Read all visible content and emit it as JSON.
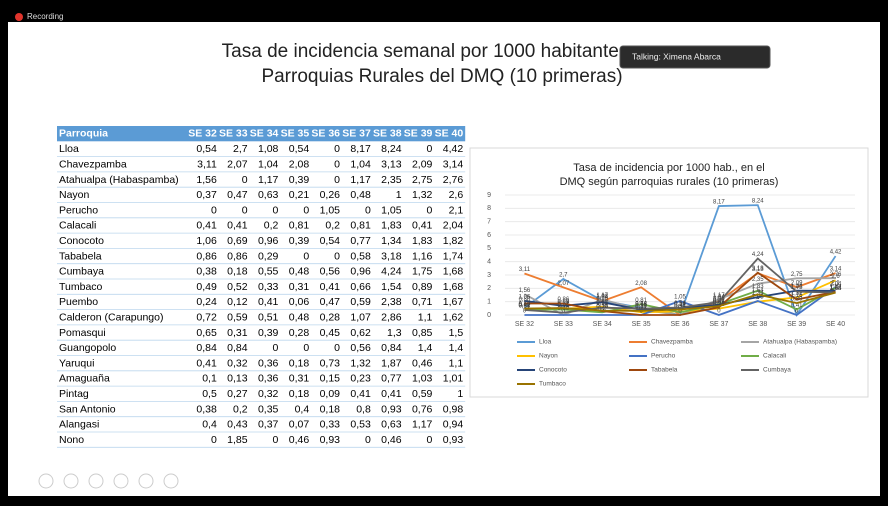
{
  "recording": {
    "label": "Recording"
  },
  "talking": {
    "label": "Talking: Ximena Abarca"
  },
  "slide": {
    "title_line1": "Tasa de incidencia semanal por 1000 habitantes",
    "title_line2": "Parroquias Rurales del DMQ (10 primeras)"
  },
  "table": {
    "header": [
      "Parroquia",
      "SE 32",
      "SE 33",
      "SE 34",
      "SE 35",
      "SE 36",
      "SE 37",
      "SE 38",
      "SE 39",
      "SE 40"
    ],
    "rows": [
      [
        "Lloa",
        "0,54",
        "2,7",
        "1,08",
        "0,54",
        "0",
        "8,17",
        "8,24",
        "0",
        "4,42"
      ],
      [
        "Chavezpamba",
        "3,11",
        "2,07",
        "1,04",
        "2,08",
        "0",
        "1,04",
        "3,13",
        "2,09",
        "3,14"
      ],
      [
        "Atahualpa (Habaspamba)",
        "1,56",
        "0",
        "1,17",
        "0,39",
        "0",
        "1,17",
        "2,35",
        "2,75",
        "2,76"
      ],
      [
        "Nayon",
        "0,37",
        "0,47",
        "0,63",
        "0,21",
        "0,26",
        "0,48",
        "1",
        "1,32",
        "2,6"
      ],
      [
        "Perucho",
        "0",
        "0",
        "0",
        "0",
        "1,05",
        "0",
        "1,05",
        "0",
        "2,1"
      ],
      [
        "Calacali",
        "0,41",
        "0,41",
        "0,2",
        "0,81",
        "0,2",
        "0,81",
        "1,83",
        "0,41",
        "2,04"
      ],
      [
        "Conocoto",
        "1,06",
        "0,69",
        "0,96",
        "0,39",
        "0,54",
        "0,77",
        "1,34",
        "1,83",
        "1,82"
      ],
      [
        "Tababela",
        "0,86",
        "0,86",
        "0,29",
        "0",
        "0",
        "0,58",
        "3,18",
        "1,16",
        "1,74"
      ],
      [
        "Cumbaya",
        "0,38",
        "0,18",
        "0,55",
        "0,48",
        "0,56",
        "0,96",
        "4,24",
        "1,75",
        "1,68"
      ],
      [
        "Tumbaco",
        "0,49",
        "0,52",
        "0,33",
        "0,31",
        "0,41",
        "0,66",
        "1,54",
        "0,89",
        "1,68"
      ],
      [
        "Puembo",
        "0,24",
        "0,12",
        "0,41",
        "0,06",
        "0,47",
        "0,59",
        "2,38",
        "0,71",
        "1,67"
      ],
      [
        "Calderon (Carapungo)",
        "0,72",
        "0,59",
        "0,51",
        "0,48",
        "0,28",
        "1,07",
        "2,86",
        "1,1",
        "1,62"
      ],
      [
        "Pomasqui",
        "0,65",
        "0,31",
        "0,39",
        "0,28",
        "0,45",
        "0,62",
        "1,3",
        "0,85",
        "1,5"
      ],
      [
        "Guangopolo",
        "0,84",
        "0,84",
        "0",
        "0",
        "0",
        "0,56",
        "0,84",
        "1,4",
        "1,4"
      ],
      [
        "Yaruqui",
        "0,41",
        "0,32",
        "0,36",
        "0,18",
        "0,73",
        "1,32",
        "1,87",
        "0,46",
        "1,1"
      ],
      [
        "Amaguaña",
        "0,1",
        "0,13",
        "0,36",
        "0,31",
        "0,15",
        "0,23",
        "0,77",
        "1,03",
        "1,01"
      ],
      [
        "Pintag",
        "0,5",
        "0,27",
        "0,32",
        "0,18",
        "0,09",
        "0,41",
        "0,41",
        "0,59",
        "1"
      ],
      [
        "San Antonio",
        "0,38",
        "0,2",
        "0,35",
        "0,4",
        "0,18",
        "0,8",
        "0,93",
        "0,76",
        "0,98"
      ],
      [
        "Alangasi",
        "0,4",
        "0,43",
        "0,37",
        "0,07",
        "0,33",
        "0,53",
        "0,63",
        "1,17",
        "0,94"
      ],
      [
        "Nono",
        "0",
        "1,85",
        "0",
        "0,46",
        "0,93",
        "0",
        "0,46",
        "0",
        "0,93"
      ]
    ]
  },
  "chart_data": {
    "type": "line",
    "title": "Tasa de incidencia por 1000 hab., en el DMQ según parroquias rurales (10 primeras)",
    "categories": [
      "SE 32",
      "SE 33",
      "SE 34",
      "SE 35",
      "SE 36",
      "SE 37",
      "SE 38",
      "SE 39",
      "SE 40"
    ],
    "ylim": [
      0,
      9
    ],
    "yticks": [
      0,
      1,
      2,
      3,
      4,
      5,
      6,
      7,
      8,
      9
    ],
    "grid": true,
    "legend": "bottom",
    "series": [
      {
        "name": "Lloa",
        "color": "#5b9bd5",
        "values": [
          0.54,
          2.7,
          1.08,
          0.54,
          0,
          8.17,
          8.24,
          0,
          4.42
        ],
        "value_labels": [
          "0,54",
          "2,7",
          "1,08",
          "0,54",
          "0",
          "8,17",
          "8,24",
          "0",
          "4,42"
        ]
      },
      {
        "name": "Chavezpamba",
        "color": "#ed7d31",
        "values": [
          3.11,
          2.07,
          1.04,
          2.08,
          0,
          1.04,
          3.13,
          2.09,
          3.14
        ],
        "value_labels": [
          "3,11",
          "2,07",
          "1,04",
          "2,08",
          "0",
          "1,04",
          "3,13",
          "2,09",
          "3,14"
        ]
      },
      {
        "name": "Atahualpa (Habaspamba)",
        "color": "#a5a5a5",
        "values": [
          1.56,
          0,
          1.17,
          0.39,
          0,
          1.17,
          2.35,
          2.75,
          2.76
        ],
        "value_labels": [
          "1,56",
          "0",
          "1,17",
          "0,39",
          "0",
          "1,17",
          "2,35",
          "2,75",
          "2,76"
        ]
      },
      {
        "name": "Nayon",
        "color": "#ffc000",
        "values": [
          0.37,
          0.47,
          0.63,
          0.21,
          0.26,
          0.48,
          1,
          1.32,
          2.6
        ],
        "value_labels": [
          "0,37",
          "0,47",
          "0,63",
          "0,21",
          "0,26",
          "0,48",
          "1",
          "1,32",
          "2,6"
        ]
      },
      {
        "name": "Perucho",
        "color": "#4472c4",
        "values": [
          0,
          0,
          0,
          0,
          1.05,
          0,
          1.05,
          0,
          2.1
        ],
        "value_labels": [
          "0",
          "0",
          "0",
          "0",
          "1,05",
          "0",
          "1,05",
          "0",
          "2,1"
        ]
      },
      {
        "name": "Calacali",
        "color": "#70ad47",
        "values": [
          0.41,
          0.41,
          0.2,
          0.81,
          0.2,
          0.81,
          1.83,
          0.41,
          2.04
        ],
        "value_labels": [
          "0,41",
          "0,41",
          "0,2",
          "0,81",
          "0,2",
          "0,81",
          "1,83",
          "0,41",
          "2,04"
        ]
      },
      {
        "name": "Conocoto",
        "color": "#264478",
        "values": [
          1.06,
          0.69,
          0.96,
          0.39,
          0.54,
          0.77,
          1.34,
          1.83,
          1.82
        ],
        "value_labels": [
          "1,06",
          "0,69",
          "0,96",
          "0,39",
          "0,54",
          "0,77",
          "1,34",
          "1,83",
          "1,82"
        ]
      },
      {
        "name": "Tababela",
        "color": "#9e480e",
        "values": [
          0.86,
          0.86,
          0.29,
          0,
          0,
          0.58,
          3.18,
          1.16,
          1.74
        ],
        "value_labels": [
          "0,86",
          "0,86",
          "0,29",
          "0",
          "0",
          "0,58",
          "3,18",
          "1,16",
          "1,74"
        ]
      },
      {
        "name": "Cumbaya",
        "color": "#636363",
        "values": [
          0.38,
          0.18,
          0.55,
          0.48,
          0.56,
          0.96,
          4.24,
          1.75,
          1.68
        ],
        "value_labels": [
          "0,38",
          "0,18",
          "0,55",
          "0,48",
          "0,56",
          "0,96",
          "4,24",
          "1,75",
          "1,68"
        ]
      },
      {
        "name": "Tumbaco",
        "color": "#997300",
        "values": [
          0.49,
          0.52,
          0.33,
          0.31,
          0.41,
          0.66,
          1.54,
          0.89,
          1.68
        ],
        "value_labels": [
          "0,49",
          "0,52",
          "0,33",
          "0,31",
          "0,41",
          "0,66",
          "1,54",
          "0,89",
          "1,68"
        ]
      }
    ]
  }
}
